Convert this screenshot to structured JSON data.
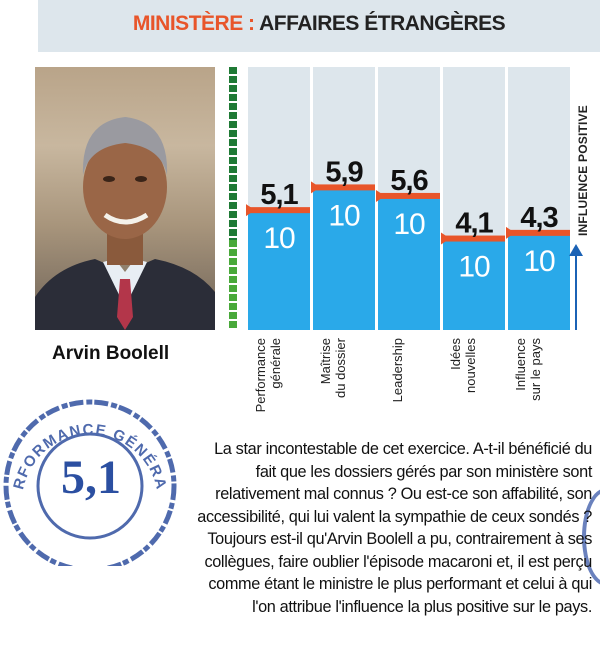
{
  "header": {
    "ministry_label": "MINISTÈRE :",
    "ministry_name": "AFFAIRES ÉTRANGÈRES"
  },
  "person": {
    "name": "Arvin Boolell"
  },
  "side_label": "INFLUENCE POSITIVE",
  "stamp": {
    "ring_text": "PERFORMANCE GÉNÉRALE",
    "value": "5,1"
  },
  "colors": {
    "accent": "#e8552a",
    "bar_blue": "#2aa9e9",
    "bar_background": "#dde6ec",
    "stamp_blue": "#2b4fa1",
    "meter_green": "#1f7a35"
  },
  "body_text": "La star incontestable de cet exercice. A-t-il bénéficié du fait que les dossiers gérés par son ministère sont relativement mal connus ? Ou est-ce son affabilité, son accessibilité, qui lui valent la sympathie de ceux sondés ? Toujours est-il qu'Arvin Boolell a pu, contrairement à ses collègues, faire oublier l'épisode macaroni et, il est perçu comme étant le ministre le plus performant et celui à qui l'on attribue l'influence la plus positive sur le pays.",
  "chart_data": {
    "type": "bar",
    "categories": [
      [
        "Performance",
        "générale"
      ],
      [
        "Maîtrise",
        "du dossier"
      ],
      [
        "Leadership"
      ],
      [
        "Idées",
        "nouvelles"
      ],
      [
        "Influence",
        "sur le pays"
      ]
    ],
    "values": [
      "5,1",
      "5,9",
      "5,6",
      "4,1",
      "4,3"
    ],
    "numeric_values": [
      5.1,
      5.9,
      5.6,
      4.1,
      4.3
    ],
    "max_label": "10",
    "max": 10,
    "ylim": [
      0,
      10
    ]
  }
}
